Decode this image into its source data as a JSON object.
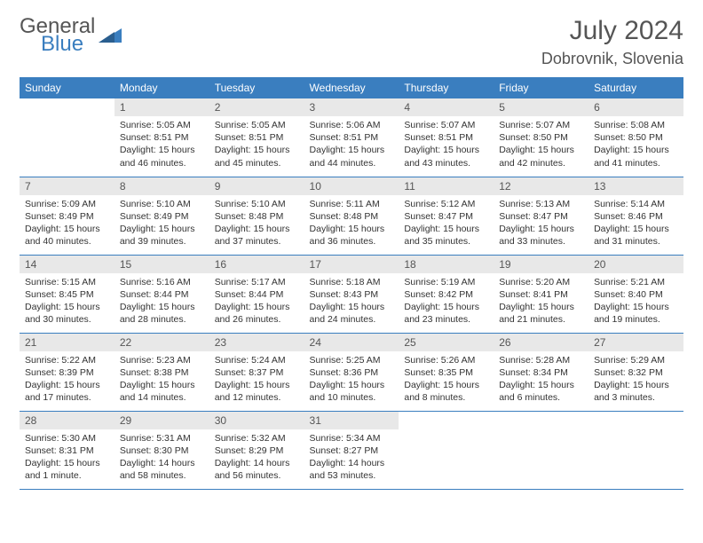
{
  "logo": {
    "general": "General",
    "blue": "Blue"
  },
  "title": "July 2024",
  "location": "Dobrovnik, Slovenia",
  "colors": {
    "header_bg": "#3a7ebf",
    "header_text": "#ffffff",
    "daynum_bg": "#e8e8e8",
    "text": "#333333",
    "row_border": "#3a7ebf",
    "logo_blue": "#3a7ebf",
    "logo_gray": "#555555"
  },
  "typography": {
    "title_fontsize": 30,
    "location_fontsize": 18,
    "day_header_fontsize": 12,
    "cell_fontsize": 10.5
  },
  "day_headers": [
    "Sunday",
    "Monday",
    "Tuesday",
    "Wednesday",
    "Thursday",
    "Friday",
    "Saturday"
  ],
  "weeks": [
    [
      {
        "n": "",
        "sr": "",
        "ss": "",
        "dl": ""
      },
      {
        "n": "1",
        "sr": "5:05 AM",
        "ss": "8:51 PM",
        "dl": "15 hours and 46 minutes."
      },
      {
        "n": "2",
        "sr": "5:05 AM",
        "ss": "8:51 PM",
        "dl": "15 hours and 45 minutes."
      },
      {
        "n": "3",
        "sr": "5:06 AM",
        "ss": "8:51 PM",
        "dl": "15 hours and 44 minutes."
      },
      {
        "n": "4",
        "sr": "5:07 AM",
        "ss": "8:51 PM",
        "dl": "15 hours and 43 minutes."
      },
      {
        "n": "5",
        "sr": "5:07 AM",
        "ss": "8:50 PM",
        "dl": "15 hours and 42 minutes."
      },
      {
        "n": "6",
        "sr": "5:08 AM",
        "ss": "8:50 PM",
        "dl": "15 hours and 41 minutes."
      }
    ],
    [
      {
        "n": "7",
        "sr": "5:09 AM",
        "ss": "8:49 PM",
        "dl": "15 hours and 40 minutes."
      },
      {
        "n": "8",
        "sr": "5:10 AM",
        "ss": "8:49 PM",
        "dl": "15 hours and 39 minutes."
      },
      {
        "n": "9",
        "sr": "5:10 AM",
        "ss": "8:48 PM",
        "dl": "15 hours and 37 minutes."
      },
      {
        "n": "10",
        "sr": "5:11 AM",
        "ss": "8:48 PM",
        "dl": "15 hours and 36 minutes."
      },
      {
        "n": "11",
        "sr": "5:12 AM",
        "ss": "8:47 PM",
        "dl": "15 hours and 35 minutes."
      },
      {
        "n": "12",
        "sr": "5:13 AM",
        "ss": "8:47 PM",
        "dl": "15 hours and 33 minutes."
      },
      {
        "n": "13",
        "sr": "5:14 AM",
        "ss": "8:46 PM",
        "dl": "15 hours and 31 minutes."
      }
    ],
    [
      {
        "n": "14",
        "sr": "5:15 AM",
        "ss": "8:45 PM",
        "dl": "15 hours and 30 minutes."
      },
      {
        "n": "15",
        "sr": "5:16 AM",
        "ss": "8:44 PM",
        "dl": "15 hours and 28 minutes."
      },
      {
        "n": "16",
        "sr": "5:17 AM",
        "ss": "8:44 PM",
        "dl": "15 hours and 26 minutes."
      },
      {
        "n": "17",
        "sr": "5:18 AM",
        "ss": "8:43 PM",
        "dl": "15 hours and 24 minutes."
      },
      {
        "n": "18",
        "sr": "5:19 AM",
        "ss": "8:42 PM",
        "dl": "15 hours and 23 minutes."
      },
      {
        "n": "19",
        "sr": "5:20 AM",
        "ss": "8:41 PM",
        "dl": "15 hours and 21 minutes."
      },
      {
        "n": "20",
        "sr": "5:21 AM",
        "ss": "8:40 PM",
        "dl": "15 hours and 19 minutes."
      }
    ],
    [
      {
        "n": "21",
        "sr": "5:22 AM",
        "ss": "8:39 PM",
        "dl": "15 hours and 17 minutes."
      },
      {
        "n": "22",
        "sr": "5:23 AM",
        "ss": "8:38 PM",
        "dl": "15 hours and 14 minutes."
      },
      {
        "n": "23",
        "sr": "5:24 AM",
        "ss": "8:37 PM",
        "dl": "15 hours and 12 minutes."
      },
      {
        "n": "24",
        "sr": "5:25 AM",
        "ss": "8:36 PM",
        "dl": "15 hours and 10 minutes."
      },
      {
        "n": "25",
        "sr": "5:26 AM",
        "ss": "8:35 PM",
        "dl": "15 hours and 8 minutes."
      },
      {
        "n": "26",
        "sr": "5:28 AM",
        "ss": "8:34 PM",
        "dl": "15 hours and 6 minutes."
      },
      {
        "n": "27",
        "sr": "5:29 AM",
        "ss": "8:32 PM",
        "dl": "15 hours and 3 minutes."
      }
    ],
    [
      {
        "n": "28",
        "sr": "5:30 AM",
        "ss": "8:31 PM",
        "dl": "15 hours and 1 minute."
      },
      {
        "n": "29",
        "sr": "5:31 AM",
        "ss": "8:30 PM",
        "dl": "14 hours and 58 minutes."
      },
      {
        "n": "30",
        "sr": "5:32 AM",
        "ss": "8:29 PM",
        "dl": "14 hours and 56 minutes."
      },
      {
        "n": "31",
        "sr": "5:34 AM",
        "ss": "8:27 PM",
        "dl": "14 hours and 53 minutes."
      },
      {
        "n": "",
        "sr": "",
        "ss": "",
        "dl": ""
      },
      {
        "n": "",
        "sr": "",
        "ss": "",
        "dl": ""
      },
      {
        "n": "",
        "sr": "",
        "ss": "",
        "dl": ""
      }
    ]
  ],
  "labels": {
    "sunrise": "Sunrise:",
    "sunset": "Sunset:",
    "daylight": "Daylight:"
  }
}
